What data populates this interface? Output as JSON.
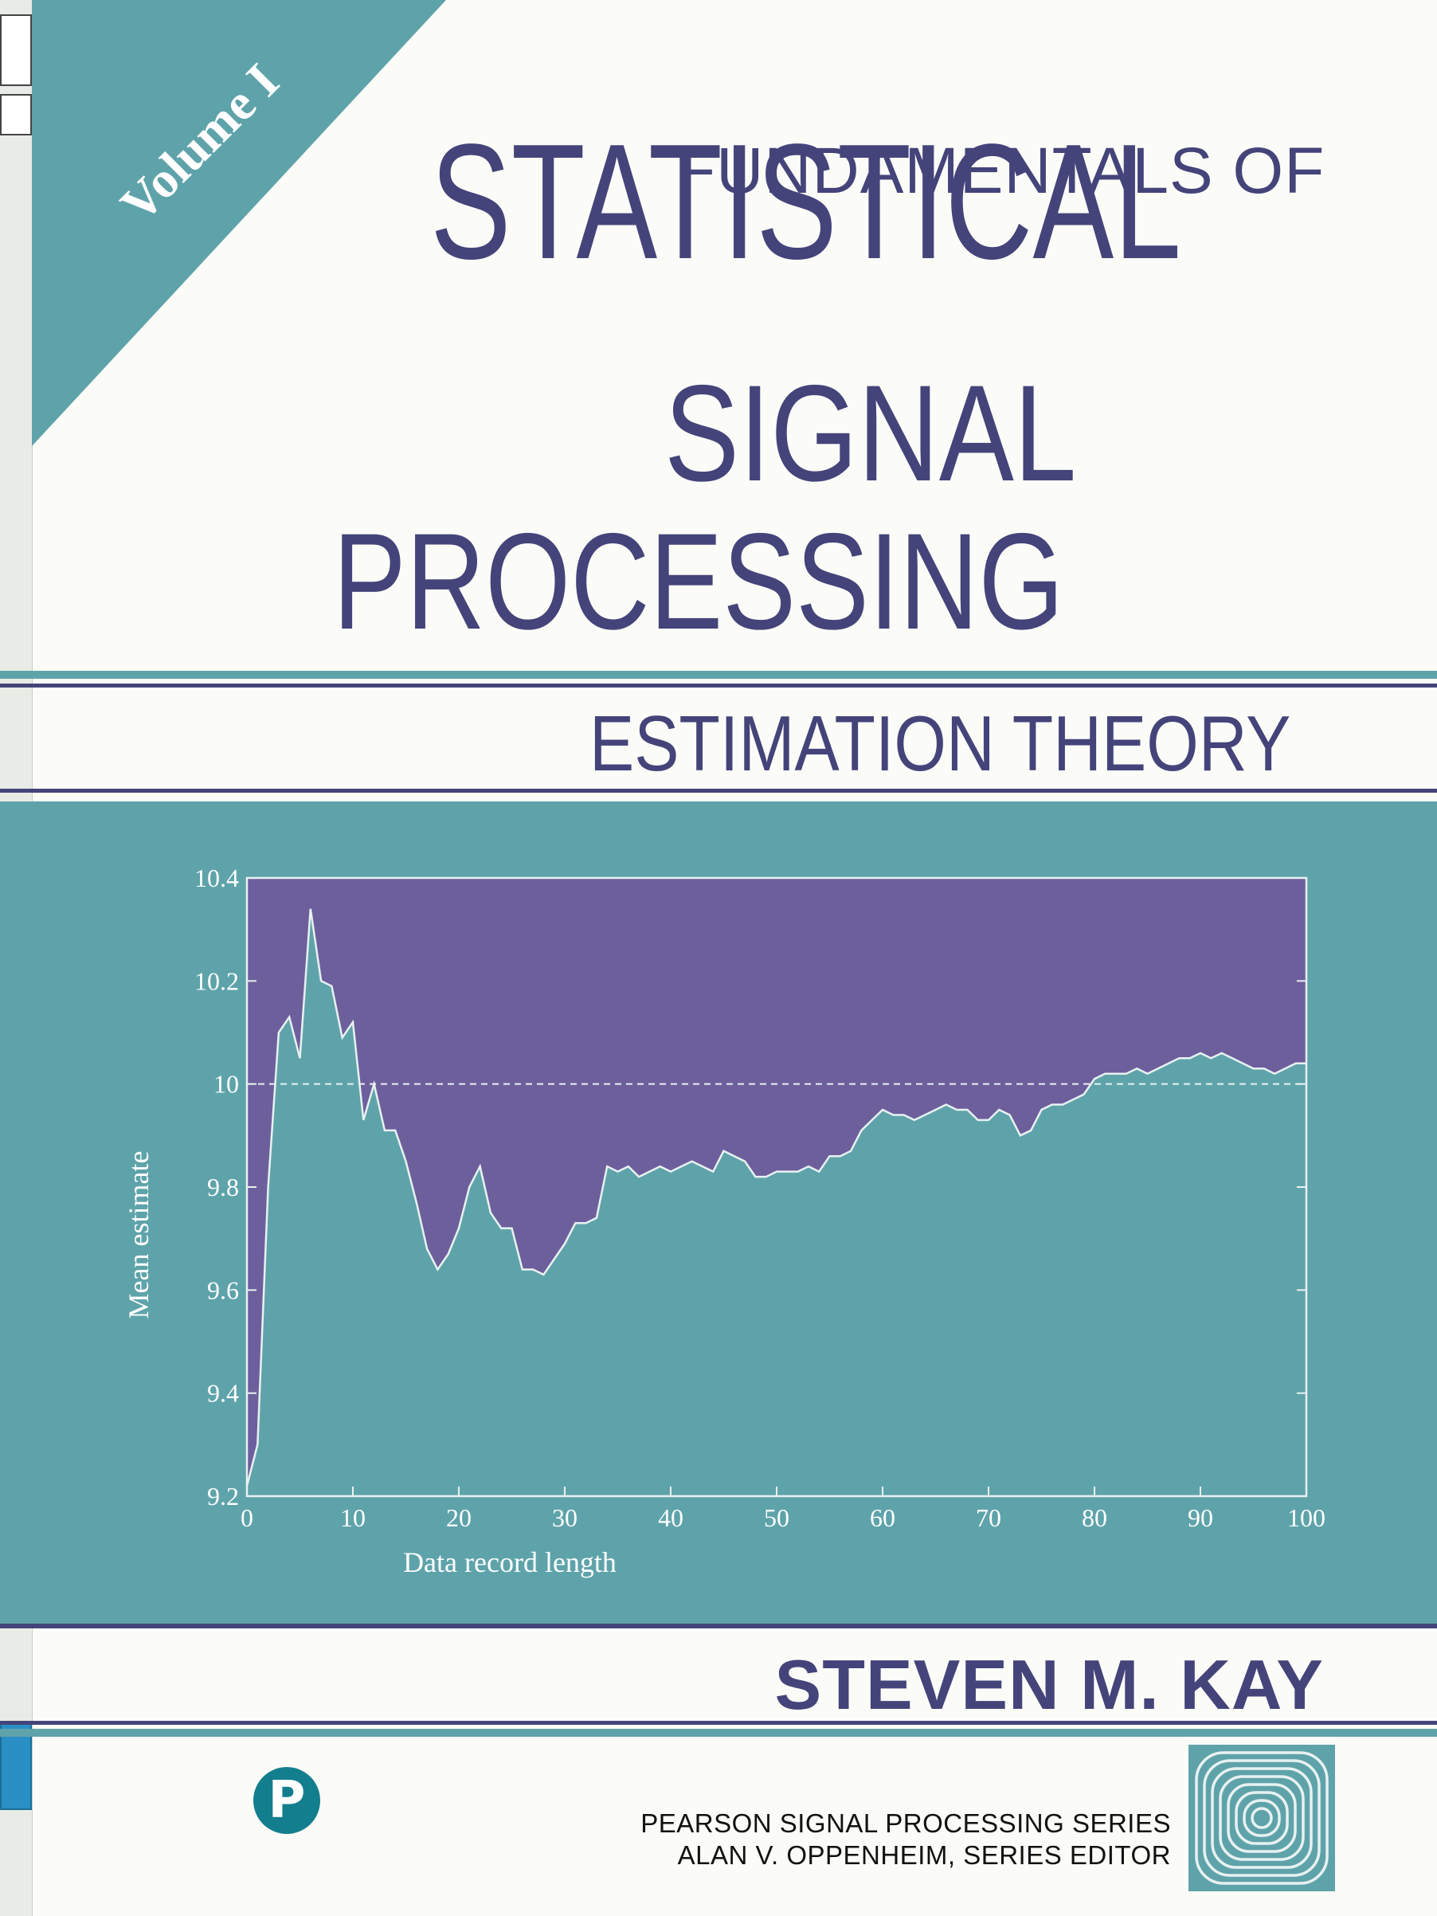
{
  "cover": {
    "volume_label": "Volume I",
    "title_line1": "FUNDAMENTALS OF",
    "title_line2": "STATISTICAL",
    "title_line3": "SIGNAL",
    "title_line4": "PROCESSING",
    "subtitle": "ESTIMATION THEORY",
    "author": "STEVEN M. KAY",
    "publisher_logo": "pearson-p-logo",
    "series_line1": "PEARSON SIGNAL PROCESSING SERIES",
    "series_line2": "ALAN V. OPPENHEIM, SERIES EDITOR",
    "series_logo": "concentric-squares-logo"
  },
  "colors": {
    "navy": "#44447a",
    "teal": "#5fa3aa",
    "purple_fill": "#6d5f9c",
    "plot_line": "#e8f1f1",
    "paper": "#fbfbf8"
  },
  "chart_data": {
    "type": "area",
    "title": "",
    "xlabel": "Data record length",
    "ylabel": "Mean estimate",
    "xlim": [
      0,
      100
    ],
    "ylim": [
      9.2,
      10.4
    ],
    "x_ticks": [
      "0",
      "10",
      "20",
      "30",
      "40",
      "50",
      "60",
      "70",
      "80",
      "90",
      "100"
    ],
    "y_ticks": [
      "9.2",
      "9.4",
      "9.6",
      "9.8",
      "10",
      "10.2",
      "10.4"
    ],
    "reference_line": 10,
    "grid": false,
    "x": [
      0,
      1,
      2,
      3,
      4,
      5,
      6,
      7,
      8,
      9,
      10,
      11,
      12,
      13,
      14,
      15,
      16,
      17,
      18,
      19,
      20,
      21,
      22,
      23,
      24,
      25,
      26,
      27,
      28,
      29,
      30,
      31,
      32,
      33,
      34,
      35,
      36,
      37,
      38,
      39,
      40,
      41,
      42,
      43,
      44,
      45,
      46,
      47,
      48,
      49,
      50,
      51,
      52,
      53,
      54,
      55,
      56,
      57,
      58,
      59,
      60,
      61,
      62,
      63,
      64,
      65,
      66,
      67,
      68,
      69,
      70,
      71,
      72,
      73,
      74,
      75,
      76,
      77,
      78,
      79,
      80,
      81,
      82,
      83,
      84,
      85,
      86,
      87,
      88,
      89,
      90,
      91,
      92,
      93,
      94,
      95,
      96,
      97,
      98,
      99,
      100
    ],
    "y": [
      9.22,
      9.3,
      9.8,
      10.1,
      10.13,
      10.05,
      10.34,
      10.2,
      10.19,
      10.09,
      10.12,
      9.93,
      10.0,
      9.91,
      9.91,
      9.85,
      9.77,
      9.68,
      9.64,
      9.67,
      9.72,
      9.8,
      9.84,
      9.75,
      9.72,
      9.72,
      9.64,
      9.64,
      9.63,
      9.66,
      9.69,
      9.73,
      9.73,
      9.74,
      9.84,
      9.83,
      9.84,
      9.82,
      9.83,
      9.84,
      9.83,
      9.84,
      9.85,
      9.84,
      9.83,
      9.87,
      9.86,
      9.85,
      9.82,
      9.82,
      9.83,
      9.83,
      9.83,
      9.84,
      9.83,
      9.86,
      9.86,
      9.87,
      9.91,
      9.93,
      9.95,
      9.94,
      9.94,
      9.93,
      9.94,
      9.95,
      9.96,
      9.95,
      9.95,
      9.93,
      9.93,
      9.95,
      9.94,
      9.9,
      9.91,
      9.95,
      9.96,
      9.96,
      9.97,
      9.98,
      10.01,
      10.02,
      10.02,
      10.02,
      10.03,
      10.02,
      10.03,
      10.04,
      10.05,
      10.05,
      10.06,
      10.05,
      10.06,
      10.05,
      10.04,
      10.03,
      10.03,
      10.02,
      10.03,
      10.04,
      10.04
    ]
  }
}
